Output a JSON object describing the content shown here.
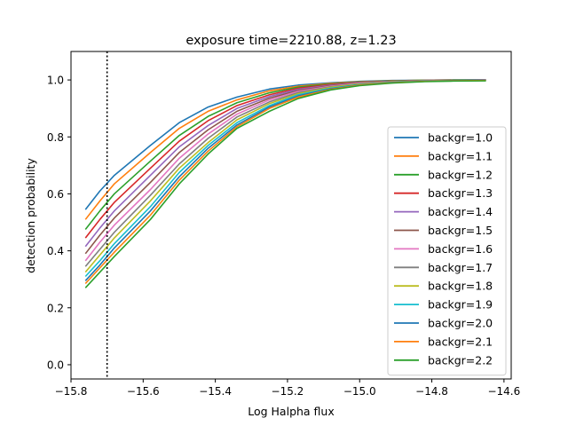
{
  "chart_data": {
    "type": "line",
    "title": "exposure time=2210.88, z=1.23",
    "xlabel": "Log Halpha flux",
    "ylabel": "detection probability",
    "xlim": [
      -15.8,
      -14.58
    ],
    "ylim": [
      -0.05,
      1.1
    ],
    "xticks": [
      -15.8,
      -15.6,
      -15.4,
      -15.2,
      -15.0,
      -14.8,
      -14.6
    ],
    "xtick_labels": [
      "−15.8",
      "−15.6",
      "−15.4",
      "−15.2",
      "−15.0",
      "−14.8",
      "−14.6"
    ],
    "yticks": [
      0.0,
      0.2,
      0.4,
      0.6,
      0.8,
      1.0
    ],
    "ytick_labels": [
      "0.0",
      "0.2",
      "0.4",
      "0.6",
      "0.8",
      "1.0"
    ],
    "grid": false,
    "legend_position": "center-right",
    "vline": {
      "x": -15.7,
      "style": "dotted",
      "color": "#000000"
    },
    "x": [
      -15.76,
      -15.72,
      -15.68,
      -15.58,
      -15.5,
      -15.42,
      -15.34,
      -15.25,
      -15.17,
      -15.08,
      -15.0,
      -14.91,
      -14.82,
      -14.74,
      -14.65
    ],
    "series": [
      {
        "name": "backgr=1.0",
        "color": "#1f77b4",
        "values": [
          0.545,
          0.61,
          0.665,
          0.77,
          0.85,
          0.905,
          0.94,
          0.968,
          0.982,
          0.99,
          0.995,
          0.998,
          0.999,
          1.0,
          1.0
        ]
      },
      {
        "name": "backgr=1.1",
        "color": "#ff7f0e",
        "values": [
          0.51,
          0.575,
          0.635,
          0.745,
          0.83,
          0.89,
          0.93,
          0.962,
          0.978,
          0.988,
          0.994,
          0.997,
          0.999,
          1.0,
          1.0
        ]
      },
      {
        "name": "backgr=1.2",
        "color": "#2ca02c",
        "values": [
          0.475,
          0.54,
          0.6,
          0.715,
          0.805,
          0.872,
          0.92,
          0.955,
          0.975,
          0.986,
          0.993,
          0.997,
          0.999,
          1.0,
          1.0
        ]
      },
      {
        "name": "backgr=1.3",
        "color": "#d62728",
        "values": [
          0.445,
          0.51,
          0.57,
          0.69,
          0.785,
          0.857,
          0.91,
          0.948,
          0.971,
          0.984,
          0.992,
          0.996,
          0.998,
          0.999,
          1.0
        ]
      },
      {
        "name": "backgr=1.4",
        "color": "#9467bd",
        "values": [
          0.415,
          0.48,
          0.54,
          0.665,
          0.765,
          0.84,
          0.9,
          0.942,
          0.967,
          0.982,
          0.991,
          0.995,
          0.998,
          0.999,
          1.0
        ]
      },
      {
        "name": "backgr=1.5",
        "color": "#8c564b",
        "values": [
          0.39,
          0.455,
          0.515,
          0.64,
          0.745,
          0.825,
          0.89,
          0.936,
          0.963,
          0.98,
          0.99,
          0.995,
          0.998,
          0.999,
          1.0
        ]
      },
      {
        "name": "backgr=1.6",
        "color": "#e377c2",
        "values": [
          0.365,
          0.43,
          0.49,
          0.615,
          0.725,
          0.81,
          0.88,
          0.93,
          0.96,
          0.978,
          0.989,
          0.994,
          0.997,
          0.999,
          1.0
        ]
      },
      {
        "name": "backgr=1.7",
        "color": "#7f7f7f",
        "values": [
          0.345,
          0.405,
          0.465,
          0.595,
          0.705,
          0.795,
          0.87,
          0.923,
          0.956,
          0.976,
          0.987,
          0.993,
          0.997,
          0.999,
          0.999
        ]
      },
      {
        "name": "backgr=1.8",
        "color": "#bcbd22",
        "values": [
          0.325,
          0.385,
          0.445,
          0.575,
          0.69,
          0.78,
          0.86,
          0.917,
          0.952,
          0.974,
          0.986,
          0.993,
          0.996,
          0.998,
          0.999
        ]
      },
      {
        "name": "backgr=1.9",
        "color": "#17becf",
        "values": [
          0.31,
          0.365,
          0.425,
          0.555,
          0.675,
          0.77,
          0.85,
          0.91,
          0.948,
          0.971,
          0.984,
          0.992,
          0.996,
          0.998,
          0.999
        ]
      },
      {
        "name": "backgr=2.0",
        "color": "#1f77b4",
        "values": [
          0.295,
          0.35,
          0.41,
          0.54,
          0.66,
          0.76,
          0.842,
          0.905,
          0.944,
          0.969,
          0.983,
          0.991,
          0.995,
          0.998,
          0.999
        ]
      },
      {
        "name": "backgr=2.1",
        "color": "#ff7f0e",
        "values": [
          0.285,
          0.34,
          0.395,
          0.525,
          0.648,
          0.75,
          0.836,
          0.9,
          0.94,
          0.967,
          0.982,
          0.99,
          0.995,
          0.997,
          0.998
        ]
      },
      {
        "name": "backgr=2.2",
        "color": "#2ca02c",
        "values": [
          0.27,
          0.325,
          0.38,
          0.51,
          0.635,
          0.74,
          0.83,
          0.89,
          0.935,
          0.965,
          0.98,
          0.989,
          0.994,
          0.996,
          0.997
        ]
      }
    ]
  }
}
